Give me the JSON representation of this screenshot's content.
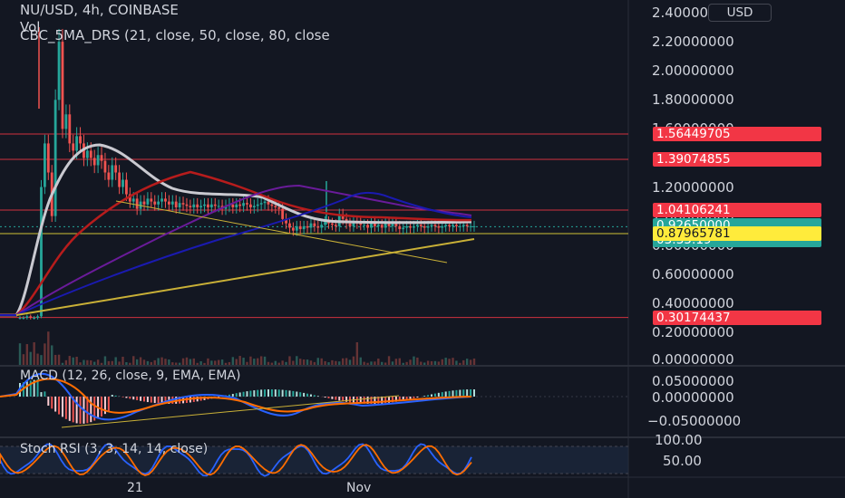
{
  "header": {
    "title": "NU/USD, 4h, COINBASE",
    "vol_label": "Vol",
    "indicator": "CBC_5MA_DRS (21, close, 50, close, 80, close"
  },
  "currency_button": "USD",
  "price_axis": [
    "2.40000000",
    "2.20000000",
    "2.00000000",
    "1.80000000",
    "1.60000000",
    "1.40000000",
    "1.20000000",
    "1.00000000",
    "0.80000000",
    "0.60000000",
    "0.40000000",
    "0.20000000"
  ],
  "price_tags": [
    {
      "value": "1.56449705",
      "bg": "#f23645",
      "fg": "#ffffff"
    },
    {
      "value": "1.39074855",
      "bg": "#f23645",
      "fg": "#ffffff"
    },
    {
      "value": "1.04106241",
      "bg": "#f23645",
      "fg": "#ffffff"
    },
    {
      "value": "0.92650000",
      "bg": "#26a69a",
      "fg": "#ffffff"
    },
    {
      "value": "03:35:19",
      "bg": "#26a69a",
      "fg": "#ffffff"
    },
    {
      "value": "0.87965781",
      "bg": "#ffeb3b",
      "fg": "#131722"
    },
    {
      "value": "0.30174437",
      "bg": "#f23645",
      "fg": "#ffffff"
    }
  ],
  "macd": {
    "label": "MACD (12, 26, close, 9, EMA, EMA)",
    "axis": [
      "0.05000000",
      "0.00000000",
      "−0.05000000"
    ]
  },
  "stoch": {
    "label": "Stoch RSI (3, 3, 14, 14, close)",
    "axis": [
      "100.00",
      "50.00"
    ]
  },
  "time_axis": [
    "21",
    "Nov"
  ],
  "colors": {
    "background": "#131722",
    "up": "#26a69a",
    "down": "#ef5350",
    "hline": "#f23645",
    "ma_white": "#c9c9d0",
    "ma_red": "#b71c1c",
    "ma_purple": "#6a1b9a",
    "ma_blue": "#1a1ab0",
    "trend_yellow": "#c9b037",
    "macd_line": "#2962ff",
    "signal_line": "#ff6d00"
  },
  "chart_data": {
    "type": "candlestick",
    "symbol": "NU/USD",
    "timeframe": "4h",
    "exchange": "COINBASE",
    "ylim": [
      0,
      2.4
    ],
    "last_price": 0.9265,
    "horizontal_levels": [
      1.56449705,
      1.39074855,
      1.04106241,
      0.87965781,
      0.30174437
    ],
    "close_series_approx": [
      0.3,
      0.3,
      0.31,
      0.3,
      0.3,
      0.31,
      1.2,
      1.5,
      1.3,
      1.0,
      1.8,
      2.2,
      1.6,
      1.7,
      1.5,
      1.45,
      1.55,
      1.5,
      1.4,
      1.45,
      1.4,
      1.35,
      1.42,
      1.38,
      1.3,
      1.25,
      1.35,
      1.3,
      1.2,
      1.25,
      1.15,
      1.1,
      1.12,
      1.05,
      1.1,
      1.08,
      1.12,
      1.1,
      1.08,
      1.1,
      1.12,
      1.1,
      1.08,
      1.1,
      1.06,
      1.09,
      1.08,
      1.07,
      1.06,
      1.08,
      1.06,
      1.07,
      1.08,
      1.06,
      1.08,
      1.07,
      1.07,
      1.05,
      1.07,
      1.08,
      1.06,
      1.08,
      1.07,
      1.09,
      1.08,
      1.06,
      1.07,
      1.08,
      1.09,
      1.1,
      1.08,
      1.07,
      1.06,
      1.05,
      0.98,
      0.95,
      0.92,
      0.9,
      0.93,
      0.91,
      0.93,
      0.92,
      0.95,
      0.93,
      0.92,
      0.94,
      0.96,
      0.95,
      0.94,
      0.93,
      1.01,
      0.98,
      0.95,
      0.93,
      0.96,
      0.95,
      0.94,
      0.94,
      0.92,
      0.95,
      0.93,
      0.94,
      0.92,
      0.95,
      0.93,
      0.95,
      0.93,
      0.91,
      0.92,
      0.93,
      0.92,
      0.93,
      0.94,
      0.93,
      0.92,
      0.93,
      0.94,
      0.93,
      0.92,
      0.93,
      0.94,
      0.93,
      0.94,
      0.93,
      0.93,
      0.94,
      0.93,
      0.93,
      0.93
    ]
  }
}
